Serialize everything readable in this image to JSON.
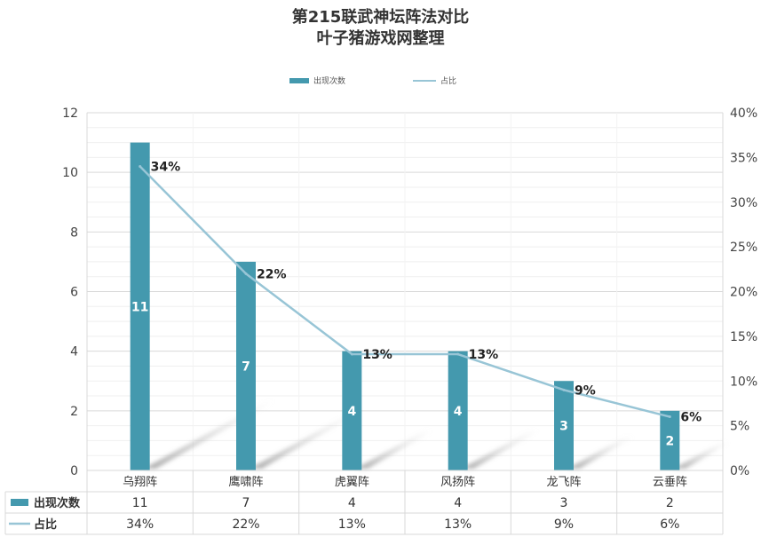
{
  "title": "第215联武神坛阵法对比",
  "subtitle": "叶子猪游戏网整理",
  "legend": {
    "bar_label": "出现次数",
    "line_label": "占比"
  },
  "colors": {
    "bar": "#4499ae",
    "line": "#98c5d6",
    "grid": "#d9d9d9",
    "text": "#333333"
  },
  "chart_data": {
    "type": "bar",
    "categories": [
      "乌翔阵",
      "鹰啸阵",
      "虎翼阵",
      "风扬阵",
      "龙飞阵",
      "云垂阵"
    ],
    "series": [
      {
        "name": "出现次数",
        "type": "bar",
        "axis": "left",
        "values": [
          11,
          7,
          4,
          4,
          3,
          2
        ]
      },
      {
        "name": "占比",
        "type": "line",
        "axis": "right",
        "values": [
          34,
          22,
          13,
          13,
          9,
          6
        ]
      }
    ],
    "ylim": [
      0,
      12
    ],
    "y_ticks": [
      "0",
      "2",
      "4",
      "6",
      "8",
      "10",
      "12"
    ],
    "y2lim": [
      0,
      40
    ],
    "y2_ticks": [
      "0%",
      "5%",
      "10%",
      "15%",
      "20%",
      "25%",
      "30%",
      "35%",
      "40%"
    ],
    "bar_data_labels": [
      "11",
      "7",
      "4",
      "4",
      "3",
      "2"
    ],
    "line_data_labels": [
      "34%",
      "22%",
      "13%",
      "13%",
      "9%",
      "6%"
    ],
    "data_table": {
      "rows": [
        {
          "label": "出现次数",
          "values": [
            "11",
            "7",
            "4",
            "4",
            "3",
            "2"
          ]
        },
        {
          "label": "占比",
          "values": [
            "34%",
            "22%",
            "13%",
            "13%",
            "9%",
            "6%"
          ]
        }
      ]
    },
    "grid": true,
    "legend_position": "top"
  }
}
